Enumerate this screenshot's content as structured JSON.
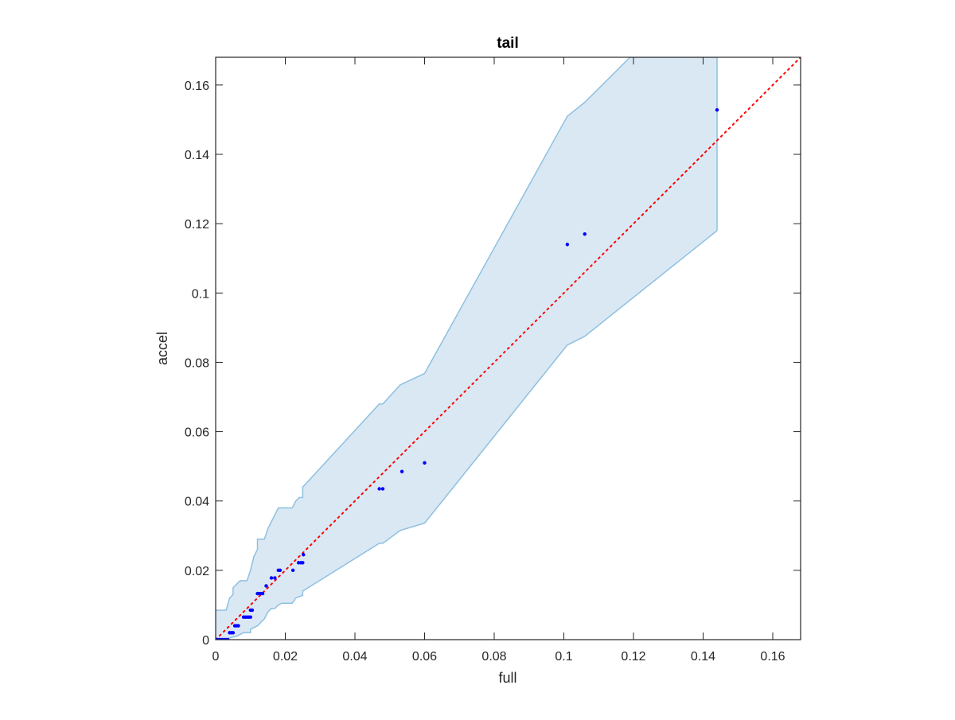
{
  "chart_data": {
    "type": "scatter",
    "title": "tail",
    "xlabel": "full",
    "ylabel": "accel",
    "xlim": [
      0,
      0.168
    ],
    "ylim": [
      0,
      0.168
    ],
    "xticks": [
      0,
      0.02,
      0.04,
      0.06,
      0.08,
      0.1,
      0.12,
      0.14,
      0.16
    ],
    "yticks": [
      0,
      0.02,
      0.04,
      0.06,
      0.08,
      0.1,
      0.12,
      0.14,
      0.16
    ],
    "xtick_labels": [
      "0",
      "0.02",
      "0.04",
      "0.06",
      "0.08",
      "0.1",
      "0.12",
      "0.14",
      "0.16"
    ],
    "ytick_labels": [
      "0",
      "0.02",
      "0.04",
      "0.06",
      "0.08",
      "0.1",
      "0.12",
      "0.14",
      "0.16"
    ],
    "grid": false,
    "series": [
      {
        "kind": "band",
        "color": "#dae8f4",
        "edge_color": "#8ec0e0",
        "upper": [
          [
            0,
            0.0085
          ],
          [
            0.003,
            0.0085
          ],
          [
            0.004,
            0.012
          ],
          [
            0.005,
            0.013
          ],
          [
            0.005,
            0.015
          ],
          [
            0.007,
            0.017
          ],
          [
            0.009,
            0.017
          ],
          [
            0.01,
            0.02
          ],
          [
            0.011,
            0.024
          ],
          [
            0.012,
            0.026
          ],
          [
            0.012,
            0.029
          ],
          [
            0.014,
            0.029
          ],
          [
            0.015,
            0.032
          ],
          [
            0.016,
            0.034
          ],
          [
            0.017,
            0.036
          ],
          [
            0.018,
            0.038
          ],
          [
            0.022,
            0.038
          ],
          [
            0.023,
            0.04
          ],
          [
            0.024,
            0.041
          ],
          [
            0.025,
            0.041
          ],
          [
            0.025,
            0.044
          ],
          [
            0.047,
            0.068
          ],
          [
            0.048,
            0.068
          ],
          [
            0.053,
            0.0735
          ],
          [
            0.06,
            0.0768
          ],
          [
            0.101,
            0.151
          ],
          [
            0.106,
            0.155
          ],
          [
            0.119,
            0.168
          ],
          [
            0.144,
            0.168
          ]
        ],
        "lower": [
          [
            0,
            0
          ],
          [
            0.003,
            0
          ],
          [
            0.004,
            0.0005
          ],
          [
            0.006,
            0.001
          ],
          [
            0.008,
            0.002
          ],
          [
            0.01,
            0.002
          ],
          [
            0.01,
            0.003
          ],
          [
            0.012,
            0.004
          ],
          [
            0.014,
            0.006
          ],
          [
            0.015,
            0.008
          ],
          [
            0.016,
            0.009
          ],
          [
            0.017,
            0.009
          ],
          [
            0.018,
            0.01
          ],
          [
            0.019,
            0.0105
          ],
          [
            0.022,
            0.0105
          ],
          [
            0.023,
            0.012
          ],
          [
            0.025,
            0.0128
          ],
          [
            0.025,
            0.014
          ],
          [
            0.047,
            0.0278
          ],
          [
            0.048,
            0.0278
          ],
          [
            0.053,
            0.0315
          ],
          [
            0.06,
            0.0336
          ],
          [
            0.101,
            0.085
          ],
          [
            0.106,
            0.0875
          ],
          [
            0.144,
            0.118
          ]
        ]
      },
      {
        "kind": "reference_line",
        "color": "#ff0000",
        "style": "dotted",
        "points": [
          [
            0,
            0
          ],
          [
            0.168,
            0.168
          ]
        ]
      },
      {
        "kind": "points",
        "color": "#0000ff",
        "points": [
          [
            0,
            0
          ],
          [
            0.0005,
            0
          ],
          [
            0.001,
            0
          ],
          [
            0.0015,
            0
          ],
          [
            0.002,
            0
          ],
          [
            0.0025,
            0
          ],
          [
            0.003,
            0
          ],
          [
            0.0035,
            0
          ],
          [
            0.004,
            0.002
          ],
          [
            0.0045,
            0.002
          ],
          [
            0.005,
            0.002
          ],
          [
            0.0055,
            0.004
          ],
          [
            0.006,
            0.004
          ],
          [
            0.0065,
            0.004
          ],
          [
            0.008,
            0.0065
          ],
          [
            0.0085,
            0.0065
          ],
          [
            0.009,
            0.0065
          ],
          [
            0.0095,
            0.0065
          ],
          [
            0.01,
            0.0065
          ],
          [
            0.01,
            0.0085
          ],
          [
            0.0105,
            0.0085
          ],
          [
            0.012,
            0.0133
          ],
          [
            0.0125,
            0.0133
          ],
          [
            0.013,
            0.0133
          ],
          [
            0.0135,
            0.0133
          ],
          [
            0.0145,
            0.0155
          ],
          [
            0.016,
            0.0178
          ],
          [
            0.017,
            0.0178
          ],
          [
            0.018,
            0.02
          ],
          [
            0.0185,
            0.02
          ],
          [
            0.0222,
            0.02
          ],
          [
            0.0238,
            0.0222
          ],
          [
            0.0245,
            0.0222
          ],
          [
            0.025,
            0.0222
          ],
          [
            0.0252,
            0.0245
          ],
          [
            0.047,
            0.0435
          ],
          [
            0.048,
            0.0435
          ],
          [
            0.0535,
            0.0485
          ],
          [
            0.06,
            0.051
          ],
          [
            0.101,
            0.114
          ],
          [
            0.106,
            0.117
          ],
          [
            0.144,
            0.1528
          ]
        ]
      }
    ]
  }
}
